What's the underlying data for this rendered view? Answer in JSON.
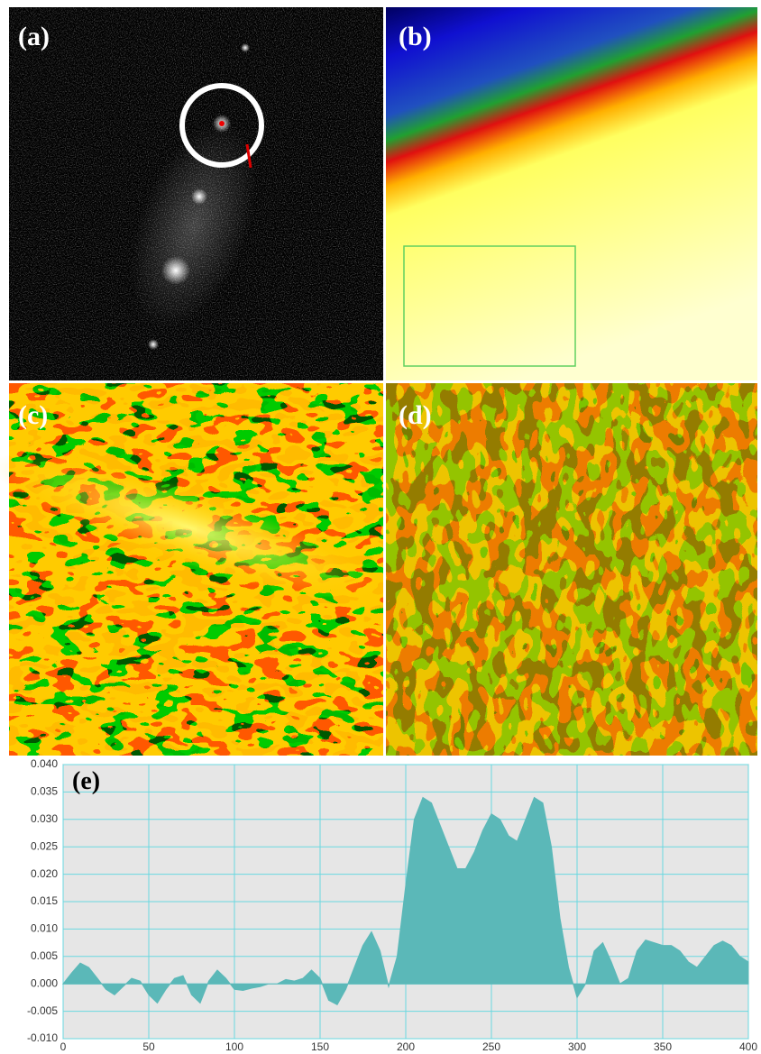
{
  "panels": [
    {
      "label": "(a)"
    },
    {
      "label": "(b)"
    },
    {
      "label": "(c)"
    },
    {
      "label": "(d)"
    }
  ],
  "chart_data": {
    "type": "area",
    "title": "(e)",
    "color": "#5bb8b8",
    "grid": true,
    "x": [
      0,
      5,
      10,
      15,
      20,
      25,
      30,
      35,
      40,
      45,
      50,
      55,
      60,
      65,
      70,
      75,
      80,
      85,
      90,
      95,
      100,
      105,
      110,
      115,
      120,
      125,
      130,
      135,
      140,
      145,
      150,
      155,
      160,
      165,
      170,
      175,
      180,
      185,
      190,
      195,
      200,
      205,
      210,
      215,
      220,
      225,
      230,
      235,
      240,
      245,
      250,
      255,
      260,
      265,
      270,
      275,
      280,
      285,
      290,
      295,
      300,
      305,
      310,
      315,
      320,
      325,
      330,
      335,
      340,
      345,
      350,
      355,
      360,
      365,
      370,
      375,
      380,
      385,
      390,
      395,
      400
    ],
    "values": [
      0,
      0.002,
      0.0038,
      0.003,
      0.001,
      -0.001,
      -0.002,
      -0.0005,
      0.001,
      0.0005,
      -0.002,
      -0.0035,
      -0.001,
      0.001,
      0.0015,
      -0.002,
      -0.0035,
      0.0005,
      0.0025,
      0.001,
      -0.001,
      -0.0012,
      -0.0008,
      -0.0005,
      0,
      0,
      0.0008,
      0.0005,
      0.001,
      0.0025,
      0.001,
      -0.003,
      -0.0038,
      -0.001,
      0.003,
      0.007,
      0.0095,
      0.006,
      -0.0005,
      0.005,
      0.018,
      0.03,
      0.034,
      0.033,
      0.029,
      0.025,
      0.021,
      0.021,
      0.024,
      0.028,
      0.031,
      0.03,
      0.027,
      0.026,
      0.03,
      0.034,
      0.033,
      0.025,
      0.012,
      0.003,
      -0.0025,
      0,
      0.006,
      0.0075,
      0.004,
      0,
      0.001,
      0.006,
      0.008,
      0.0075,
      0.007,
      0.007,
      0.006,
      0.004,
      0.003,
      0.005,
      0.007,
      0.0078,
      0.007,
      0.005,
      0.004
    ],
    "xlim": [
      0,
      400
    ],
    "xticks": [
      0,
      50,
      100,
      150,
      200,
      250,
      300,
      350,
      400
    ],
    "ylim": [
      -0.01,
      0.04
    ],
    "yticks": [
      {
        "value": -0.01,
        "label": "-0.010"
      },
      {
        "value": -0.005,
        "label": "-0.005"
      },
      {
        "value": 0,
        "label": "0.000"
      },
      {
        "value": 0.005,
        "label": "0.005"
      },
      {
        "value": 0.01,
        "label": "0.010"
      },
      {
        "value": 0.015,
        "label": "0.015"
      },
      {
        "value": 0.02,
        "label": "0.020"
      },
      {
        "value": 0.025,
        "label": "0.025"
      },
      {
        "value": 0.03,
        "label": "0.030"
      },
      {
        "value": 0.035,
        "label": "0.035"
      },
      {
        "value": 0.04,
        "label": "0.040"
      }
    ]
  }
}
